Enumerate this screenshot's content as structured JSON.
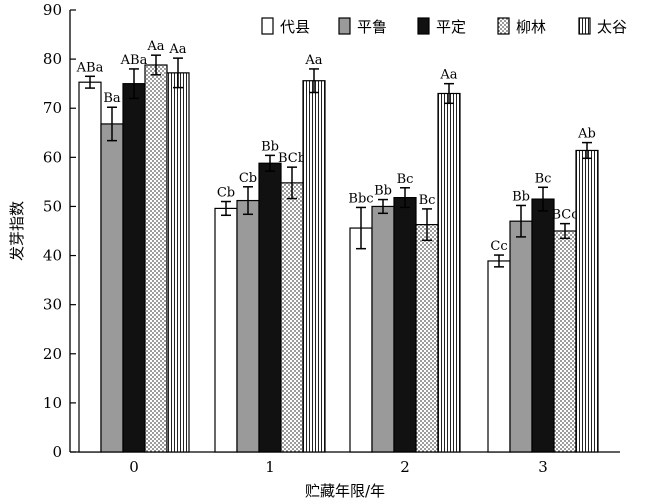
{
  "chart_data": {
    "type": "bar",
    "title": "",
    "xlabel": "贮藏年限/年",
    "ylabel": "发芽指数",
    "ylim": [
      0,
      90
    ],
    "yticks": [
      0,
      10,
      20,
      30,
      40,
      50,
      60,
      70,
      80,
      90
    ],
    "categories": [
      "0",
      "1",
      "2",
      "3"
    ],
    "legend_position": "top-right",
    "grid": false,
    "series": [
      {
        "name": "代县",
        "pattern": "solid-white",
        "color": "#ffffff",
        "values": [
          75.3,
          49.6,
          45.6,
          38.9
        ],
        "errors": [
          1.2,
          1.4,
          4.2,
          1.2
        ],
        "labels": [
          "ABa",
          "Cb",
          "Bbc",
          "Cc"
        ]
      },
      {
        "name": "平鲁",
        "pattern": "solid-gray",
        "color": "#9a9a9a",
        "values": [
          66.8,
          51.2,
          50.0,
          47.0
        ],
        "errors": [
          3.4,
          2.8,
          1.4,
          3.2
        ],
        "labels": [
          "Ba",
          "Cb",
          "Bb",
          "Bb"
        ]
      },
      {
        "name": "平定",
        "pattern": "solid-black",
        "color": "#111111",
        "values": [
          75.0,
          58.8,
          51.8,
          51.5
        ],
        "errors": [
          3.0,
          1.6,
          2.0,
          2.4
        ],
        "labels": [
          "ABa",
          "Bb",
          "Bc",
          "Bc"
        ]
      },
      {
        "name": "柳林",
        "pattern": "dotted",
        "color": "#e8e8e8",
        "values": [
          78.8,
          54.8,
          46.3,
          45.0
        ],
        "errors": [
          2.0,
          3.2,
          3.2,
          1.5
        ],
        "labels": [
          "Aa",
          "BCb",
          "Bc",
          "BCc"
        ]
      },
      {
        "name": "太谷",
        "pattern": "vertical-lines",
        "color": "#ffffff",
        "values": [
          77.2,
          75.6,
          73.0,
          61.4
        ],
        "errors": [
          3.0,
          2.4,
          2.0,
          1.6
        ],
        "labels": [
          "Aa",
          "Aa",
          "Aa",
          "Ab"
        ]
      }
    ]
  }
}
